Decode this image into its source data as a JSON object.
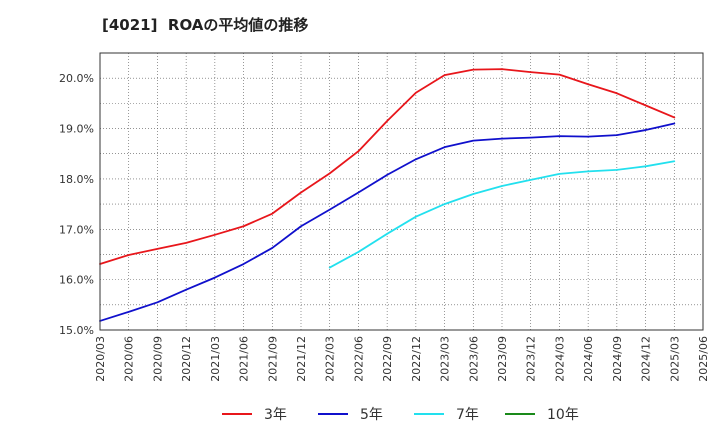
{
  "title": "[4021]  ROAの平均値の推移",
  "chart_data": {
    "type": "line",
    "x": [
      "2020/03",
      "2020/06",
      "2020/09",
      "2020/12",
      "2021/03",
      "2021/06",
      "2021/09",
      "2021/12",
      "2022/03",
      "2022/06",
      "2022/09",
      "2022/12",
      "2023/03",
      "2023/06",
      "2023/09",
      "2023/12",
      "2024/03",
      "2024/06",
      "2024/09",
      "2024/12",
      "2025/03",
      "2025/06"
    ],
    "ylim": [
      15.0,
      20.5
    ],
    "yticks": [
      "15.0%",
      "16.0%",
      "17.0%",
      "18.0%",
      "19.0%",
      "20.0%"
    ],
    "ytick_values": [
      15,
      16,
      17,
      18,
      19,
      20
    ],
    "grid": true,
    "legend_position": "bottom",
    "series": [
      {
        "name": "3年",
        "color": "#e8161b",
        "values": [
          16.31,
          16.49,
          16.61,
          16.73,
          16.89,
          17.06,
          17.31,
          17.73,
          18.11,
          18.55,
          19.15,
          19.71,
          20.06,
          20.17,
          20.18,
          20.12,
          20.07,
          19.88,
          19.7,
          19.46,
          19.22,
          null
        ]
      },
      {
        "name": "5年",
        "color": "#1010cc",
        "values": [
          15.18,
          15.36,
          15.55,
          15.8,
          16.04,
          16.31,
          16.63,
          17.06,
          17.39,
          17.73,
          18.08,
          18.39,
          18.63,
          18.76,
          18.8,
          18.82,
          18.85,
          18.84,
          18.87,
          18.97,
          19.1,
          null
        ]
      },
      {
        "name": "7年",
        "color": "#22e0ee",
        "values": [
          null,
          null,
          null,
          null,
          null,
          null,
          null,
          null,
          16.24,
          16.55,
          16.91,
          17.25,
          17.5,
          17.7,
          17.86,
          17.98,
          18.1,
          18.15,
          18.18,
          18.25,
          18.35,
          null
        ]
      },
      {
        "name": "10年",
        "color": "#1a8a1a",
        "values": [
          null,
          null,
          null,
          null,
          null,
          null,
          null,
          null,
          null,
          null,
          null,
          null,
          null,
          null,
          null,
          null,
          null,
          null,
          null,
          null,
          null,
          null
        ]
      }
    ]
  }
}
